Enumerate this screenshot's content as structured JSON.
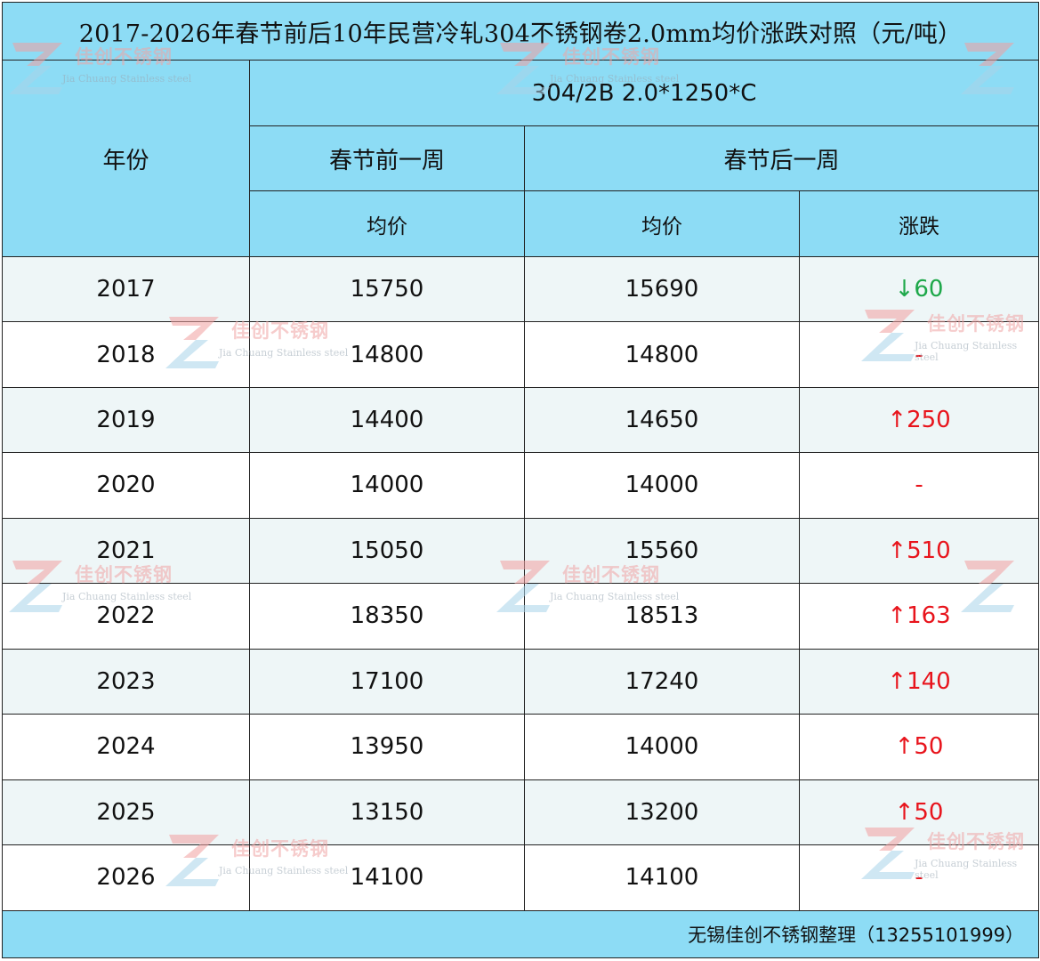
{
  "title": "2017-2026年春节前后10年民营冷轧304不锈钢卷2.0mm均价涨跌对照（元/吨）",
  "header": {
    "year_label": "年份",
    "spec": "304/2B 2.0*1250*C",
    "before_label": "春节前一周",
    "after_label": "春节后一周",
    "avg_label": "均价",
    "change_label": "涨跌"
  },
  "rows": [
    {
      "year": "2017",
      "before": "15750",
      "after": "15690",
      "change": "↓60",
      "dir": "down"
    },
    {
      "year": "2018",
      "before": "14800",
      "after": "14800",
      "change": "-",
      "dir": "flat"
    },
    {
      "year": "2019",
      "before": "14400",
      "after": "14650",
      "change": "↑250",
      "dir": "up"
    },
    {
      "year": "2020",
      "before": "14000",
      "after": "14000",
      "change": "-",
      "dir": "flat"
    },
    {
      "year": "2021",
      "before": "15050",
      "after": "15560",
      "change": "↑510",
      "dir": "up"
    },
    {
      "year": "2022",
      "before": "18350",
      "after": "18513",
      "change": "↑163",
      "dir": "up"
    },
    {
      "year": "2023",
      "before": "17100",
      "after": "17240",
      "change": "↑140",
      "dir": "up"
    },
    {
      "year": "2024",
      "before": "13950",
      "after": "14000",
      "change": "↑50",
      "dir": "up"
    },
    {
      "year": "2025",
      "before": "13150",
      "after": "13200",
      "change": "↑50",
      "dir": "up"
    },
    {
      "year": "2026",
      "before": "14100",
      "after": "14100",
      "change": "-",
      "dir": "flat"
    }
  ],
  "footer": "无锡佳创不锈钢整理（13255101999）",
  "watermark": {
    "cn": "佳创不锈钢",
    "en": "Jia Chuang Stainless steel",
    "icon": "jiachuang-logo-icon"
  },
  "colors": {
    "header_bg": "#8ddcf5",
    "up": "#e8141c",
    "down": "#1ea84a",
    "flat": "#e8141c",
    "odd_row_bg": "#eef6f7"
  }
}
